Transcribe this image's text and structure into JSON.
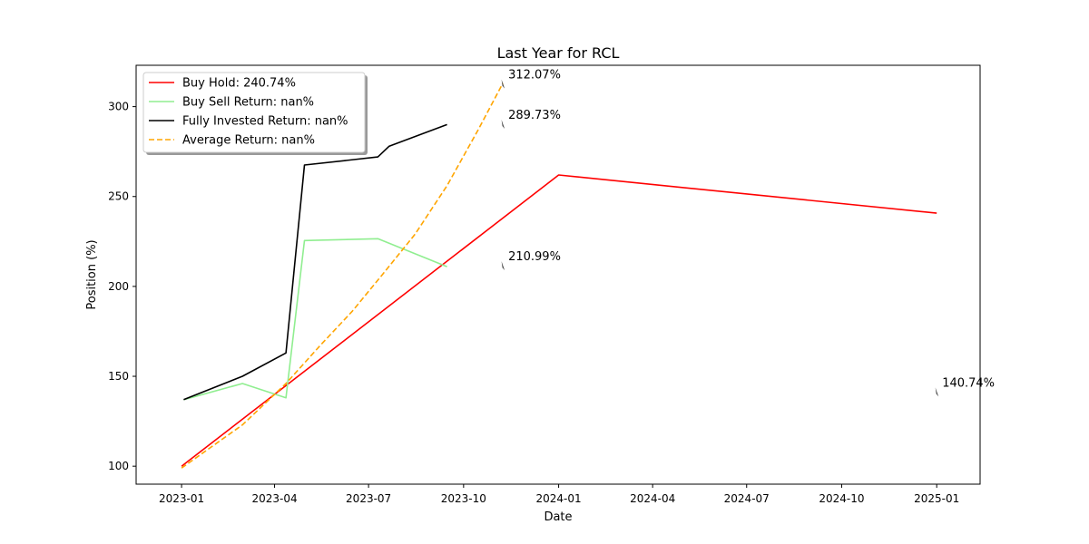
{
  "chart_data": {
    "type": "line",
    "title": "Last Year for RCL",
    "xlabel": "Date",
    "ylabel": "Position (%)",
    "x_ticks": [
      "2023-01",
      "2023-04",
      "2023-07",
      "2023-10",
      "2024-01",
      "2024-04",
      "2024-07",
      "2024-10",
      "2025-01"
    ],
    "y_ticks": [
      100,
      150,
      200,
      250,
      300
    ],
    "xlim": [
      "2022-11-18",
      "2025-02-12"
    ],
    "ylim": [
      90,
      323
    ],
    "legend_position": "upper-left",
    "series": [
      {
        "name": "Buy Hold: 240.74%",
        "color": "#ff0000",
        "style": "solid",
        "points": [
          [
            "2023-01-01",
            100
          ],
          [
            "2024-01-01",
            262
          ],
          [
            "2025-01-01",
            240.74
          ]
        ]
      },
      {
        "name": "Buy Sell Return: nan%",
        "color": "#90ee90",
        "style": "solid",
        "points": [
          [
            "2023-01-03",
            137
          ],
          [
            "2023-03-01",
            146
          ],
          [
            "2023-04-12",
            138
          ],
          [
            "2023-04-30",
            225.5
          ],
          [
            "2023-07-10",
            226.5
          ],
          [
            "2023-09-15",
            211
          ]
        ]
      },
      {
        "name": "Fully Invested Return: nan%",
        "color": "#000000",
        "style": "solid",
        "points": [
          [
            "2023-01-03",
            137
          ],
          [
            "2023-03-01",
            150
          ],
          [
            "2023-04-12",
            163
          ],
          [
            "2023-04-30",
            267.5
          ],
          [
            "2023-07-10",
            272
          ],
          [
            "2023-07-21",
            278
          ],
          [
            "2023-09-15",
            290
          ]
        ]
      },
      {
        "name": "Average Return: nan%",
        "color": "#ffa500",
        "style": "dashed",
        "points": [
          [
            "2023-01-01",
            99
          ],
          [
            "2023-03-01",
            123
          ],
          [
            "2023-04-12",
            146
          ],
          [
            "2023-05-15",
            167
          ],
          [
            "2023-06-15",
            186
          ],
          [
            "2023-07-15",
            207
          ],
          [
            "2023-08-15",
            229
          ],
          [
            "2023-09-15",
            256
          ],
          [
            "2023-10-15",
            287
          ],
          [
            "2023-11-08",
            313
          ]
        ]
      }
    ],
    "annotations": [
      {
        "text": "312.07%",
        "x": "2023-11-08",
        "y": 312.07
      },
      {
        "text": "289.73%",
        "x": "2023-11-08",
        "y": 289.73
      },
      {
        "text": "210.99%",
        "x": "2023-11-08",
        "y": 210.99
      },
      {
        "text": "140.74%",
        "x": "2025-01-01",
        "y": 140.74
      }
    ]
  }
}
